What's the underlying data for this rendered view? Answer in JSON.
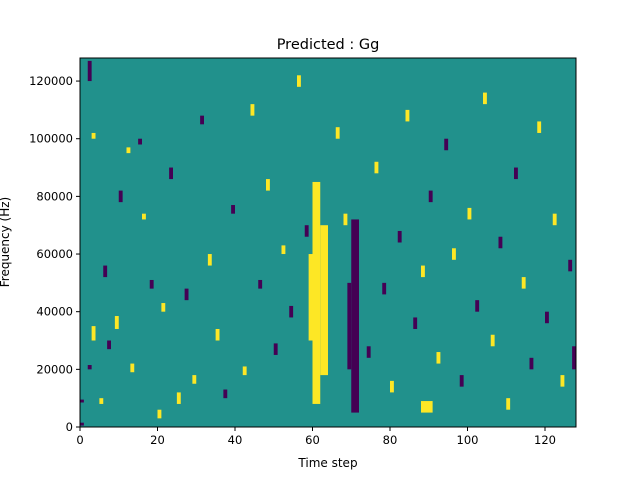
{
  "chart_data": {
    "type": "heatmap",
    "title": "Predicted : Gg",
    "xlabel": "Time step",
    "ylabel": "Frequency (Hz)",
    "xlim": [
      0,
      128
    ],
    "ylim": [
      0,
      128000
    ],
    "x_ticks": [
      0,
      20,
      40,
      60,
      80,
      100,
      120
    ],
    "y_ticks": [
      0,
      20000,
      40000,
      60000,
      80000,
      100000,
      120000
    ],
    "x_tick_labels": [
      "0",
      "20",
      "40",
      "60",
      "80",
      "100",
      "120"
    ],
    "y_tick_labels": [
      "0",
      "20000",
      "40000",
      "60000",
      "80000",
      "100000",
      "120000"
    ],
    "n_time_steps": 128,
    "n_freq_bins": 128,
    "value_levels": {
      "low": -1,
      "mid": 0,
      "high": 1
    },
    "colormap": {
      "low": "#440154",
      "mid": "#21918c",
      "high": "#fde725"
    },
    "grid": false,
    "background_level": 0,
    "cells": [
      {
        "t": 0,
        "f0": 500,
        "f1": 1500,
        "v": -1
      },
      {
        "t": 0,
        "f0": 8500,
        "f1": 9500,
        "v": -1
      },
      {
        "t": 2,
        "f0": 20000,
        "f1": 21500,
        "v": -1
      },
      {
        "t": 2,
        "f0": 120000,
        "f1": 127000,
        "v": -1
      },
      {
        "t": 3,
        "f0": 30000,
        "f1": 35000,
        "v": 1
      },
      {
        "t": 3,
        "f0": 100000,
        "f1": 102000,
        "v": 1
      },
      {
        "t": 5,
        "f0": 8000,
        "f1": 10000,
        "v": 1
      },
      {
        "t": 6,
        "f0": 52000,
        "f1": 56000,
        "v": -1
      },
      {
        "t": 7,
        "f0": 27000,
        "f1": 30000,
        "v": -1
      },
      {
        "t": 9,
        "f0": 34000,
        "f1": 38500,
        "v": 1
      },
      {
        "t": 10,
        "f0": 78000,
        "f1": 82000,
        "v": -1
      },
      {
        "t": 12,
        "f0": 95000,
        "f1": 97000,
        "v": 1
      },
      {
        "t": 13,
        "f0": 19000,
        "f1": 22000,
        "v": 1
      },
      {
        "t": 15,
        "f0": 98000,
        "f1": 100000,
        "v": -1
      },
      {
        "t": 16,
        "f0": 72000,
        "f1": 74000,
        "v": 1
      },
      {
        "t": 18,
        "f0": 48000,
        "f1": 51000,
        "v": -1
      },
      {
        "t": 20,
        "f0": 3000,
        "f1": 6000,
        "v": 1
      },
      {
        "t": 21,
        "f0": 40000,
        "f1": 43000,
        "v": 1
      },
      {
        "t": 23,
        "f0": 86000,
        "f1": 90000,
        "v": -1
      },
      {
        "t": 25,
        "f0": 8000,
        "f1": 12000,
        "v": 1
      },
      {
        "t": 27,
        "f0": 44000,
        "f1": 48000,
        "v": -1
      },
      {
        "t": 29,
        "f0": 15000,
        "f1": 18000,
        "v": 1
      },
      {
        "t": 31,
        "f0": 105000,
        "f1": 108000,
        "v": -1
      },
      {
        "t": 33,
        "f0": 56000,
        "f1": 60000,
        "v": 1
      },
      {
        "t": 35,
        "f0": 30000,
        "f1": 34000,
        "v": 1
      },
      {
        "t": 37,
        "f0": 10000,
        "f1": 13000,
        "v": -1
      },
      {
        "t": 39,
        "f0": 74000,
        "f1": 77000,
        "v": -1
      },
      {
        "t": 42,
        "f0": 18000,
        "f1": 21000,
        "v": 1
      },
      {
        "t": 44,
        "f0": 108000,
        "f1": 112000,
        "v": 1
      },
      {
        "t": 46,
        "f0": 48000,
        "f1": 51000,
        "v": -1
      },
      {
        "t": 48,
        "f0": 82000,
        "f1": 86000,
        "v": 1
      },
      {
        "t": 50,
        "f0": 25000,
        "f1": 29000,
        "v": -1
      },
      {
        "t": 52,
        "f0": 60000,
        "f1": 63000,
        "v": 1
      },
      {
        "t": 54,
        "f0": 38000,
        "f1": 42000,
        "v": -1
      },
      {
        "t": 56,
        "f0": 118000,
        "f1": 122000,
        "v": 1
      },
      {
        "t": 58,
        "f0": 66000,
        "f1": 70000,
        "v": -1
      },
      {
        "t": 66,
        "f0": 100000,
        "f1": 104000,
        "v": 1
      },
      {
        "t": 68,
        "f0": 70000,
        "f1": 74000,
        "v": 1
      },
      {
        "t": 74,
        "f0": 24000,
        "f1": 28000,
        "v": -1
      },
      {
        "t": 76,
        "f0": 88000,
        "f1": 92000,
        "v": 1
      },
      {
        "t": 78,
        "f0": 46000,
        "f1": 50000,
        "v": -1
      },
      {
        "t": 80,
        "f0": 12000,
        "f1": 16000,
        "v": 1
      },
      {
        "t": 82,
        "f0": 64000,
        "f1": 68000,
        "v": -1
      },
      {
        "t": 84,
        "f0": 106000,
        "f1": 110000,
        "v": 1
      },
      {
        "t": 86,
        "f0": 34000,
        "f1": 38000,
        "v": -1
      },
      {
        "t": 88,
        "f0": 52000,
        "f1": 56000,
        "v": 1
      },
      {
        "t": 90,
        "f0": 78000,
        "f1": 82000,
        "v": -1
      },
      {
        "t": 92,
        "f0": 22000,
        "f1": 26000,
        "v": 1
      },
      {
        "t": 94,
        "f0": 96000,
        "f1": 100000,
        "v": -1
      },
      {
        "t": 96,
        "f0": 58000,
        "f1": 62000,
        "v": 1
      },
      {
        "t": 98,
        "f0": 14000,
        "f1": 18000,
        "v": -1
      },
      {
        "t": 100,
        "f0": 72000,
        "f1": 76000,
        "v": 1
      },
      {
        "t": 102,
        "f0": 40000,
        "f1": 44000,
        "v": -1
      },
      {
        "t": 104,
        "f0": 112000,
        "f1": 116000,
        "v": 1
      },
      {
        "t": 106,
        "f0": 28000,
        "f1": 32000,
        "v": 1
      },
      {
        "t": 108,
        "f0": 62000,
        "f1": 66000,
        "v": -1
      },
      {
        "t": 110,
        "f0": 6000,
        "f1": 10000,
        "v": 1
      },
      {
        "t": 112,
        "f0": 86000,
        "f1": 90000,
        "v": -1
      },
      {
        "t": 114,
        "f0": 48000,
        "f1": 52000,
        "v": 1
      },
      {
        "t": 116,
        "f0": 20000,
        "f1": 24000,
        "v": -1
      },
      {
        "t": 118,
        "f0": 102000,
        "f1": 106000,
        "v": 1
      },
      {
        "t": 120,
        "f0": 36000,
        "f1": 40000,
        "v": -1
      },
      {
        "t": 122,
        "f0": 70000,
        "f1": 74000,
        "v": 1
      },
      {
        "t": 124,
        "f0": 14000,
        "f1": 18000,
        "v": 1
      },
      {
        "t": 126,
        "f0": 54000,
        "f1": 58000,
        "v": -1
      },
      {
        "t": 127,
        "f0": 20000,
        "f1": 28000,
        "v": -1
      }
    ],
    "bands": [
      {
        "t0": 60,
        "t1": 62,
        "f0": 8000,
        "f1": 85000,
        "v": 1
      },
      {
        "t0": 62,
        "t1": 64,
        "f0": 18000,
        "f1": 70000,
        "v": 1
      },
      {
        "t0": 59,
        "t1": 60,
        "f0": 30000,
        "f1": 60000,
        "v": 1
      },
      {
        "t0": 70,
        "t1": 72,
        "f0": 5000,
        "f1": 72000,
        "v": -1
      },
      {
        "t0": 69,
        "t1": 70,
        "f0": 20000,
        "f1": 50000,
        "v": -1
      },
      {
        "t0": 88,
        "t1": 91,
        "f0": 5000,
        "f1": 9000,
        "v": 1
      }
    ]
  }
}
